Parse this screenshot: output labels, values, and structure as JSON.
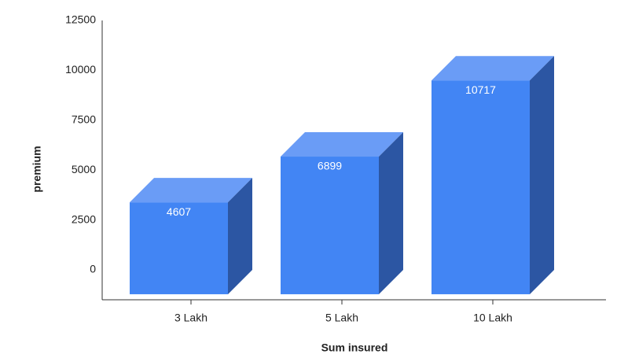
{
  "chart_data": {
    "type": "bar3d",
    "x_label": "Sum insured",
    "y_label": "premium",
    "categories": [
      "3 Lakh",
      "5 Lakh",
      "10 Lakh"
    ],
    "values": [
      4607,
      6899,
      10717
    ],
    "color": "#4285f4",
    "top_color": "#6a9cf6",
    "side_color": "#2c56a3",
    "ylim": [
      -1500,
      12500
    ],
    "yticks": [
      0,
      2500,
      5000,
      7500,
      10000,
      12500
    ]
  }
}
